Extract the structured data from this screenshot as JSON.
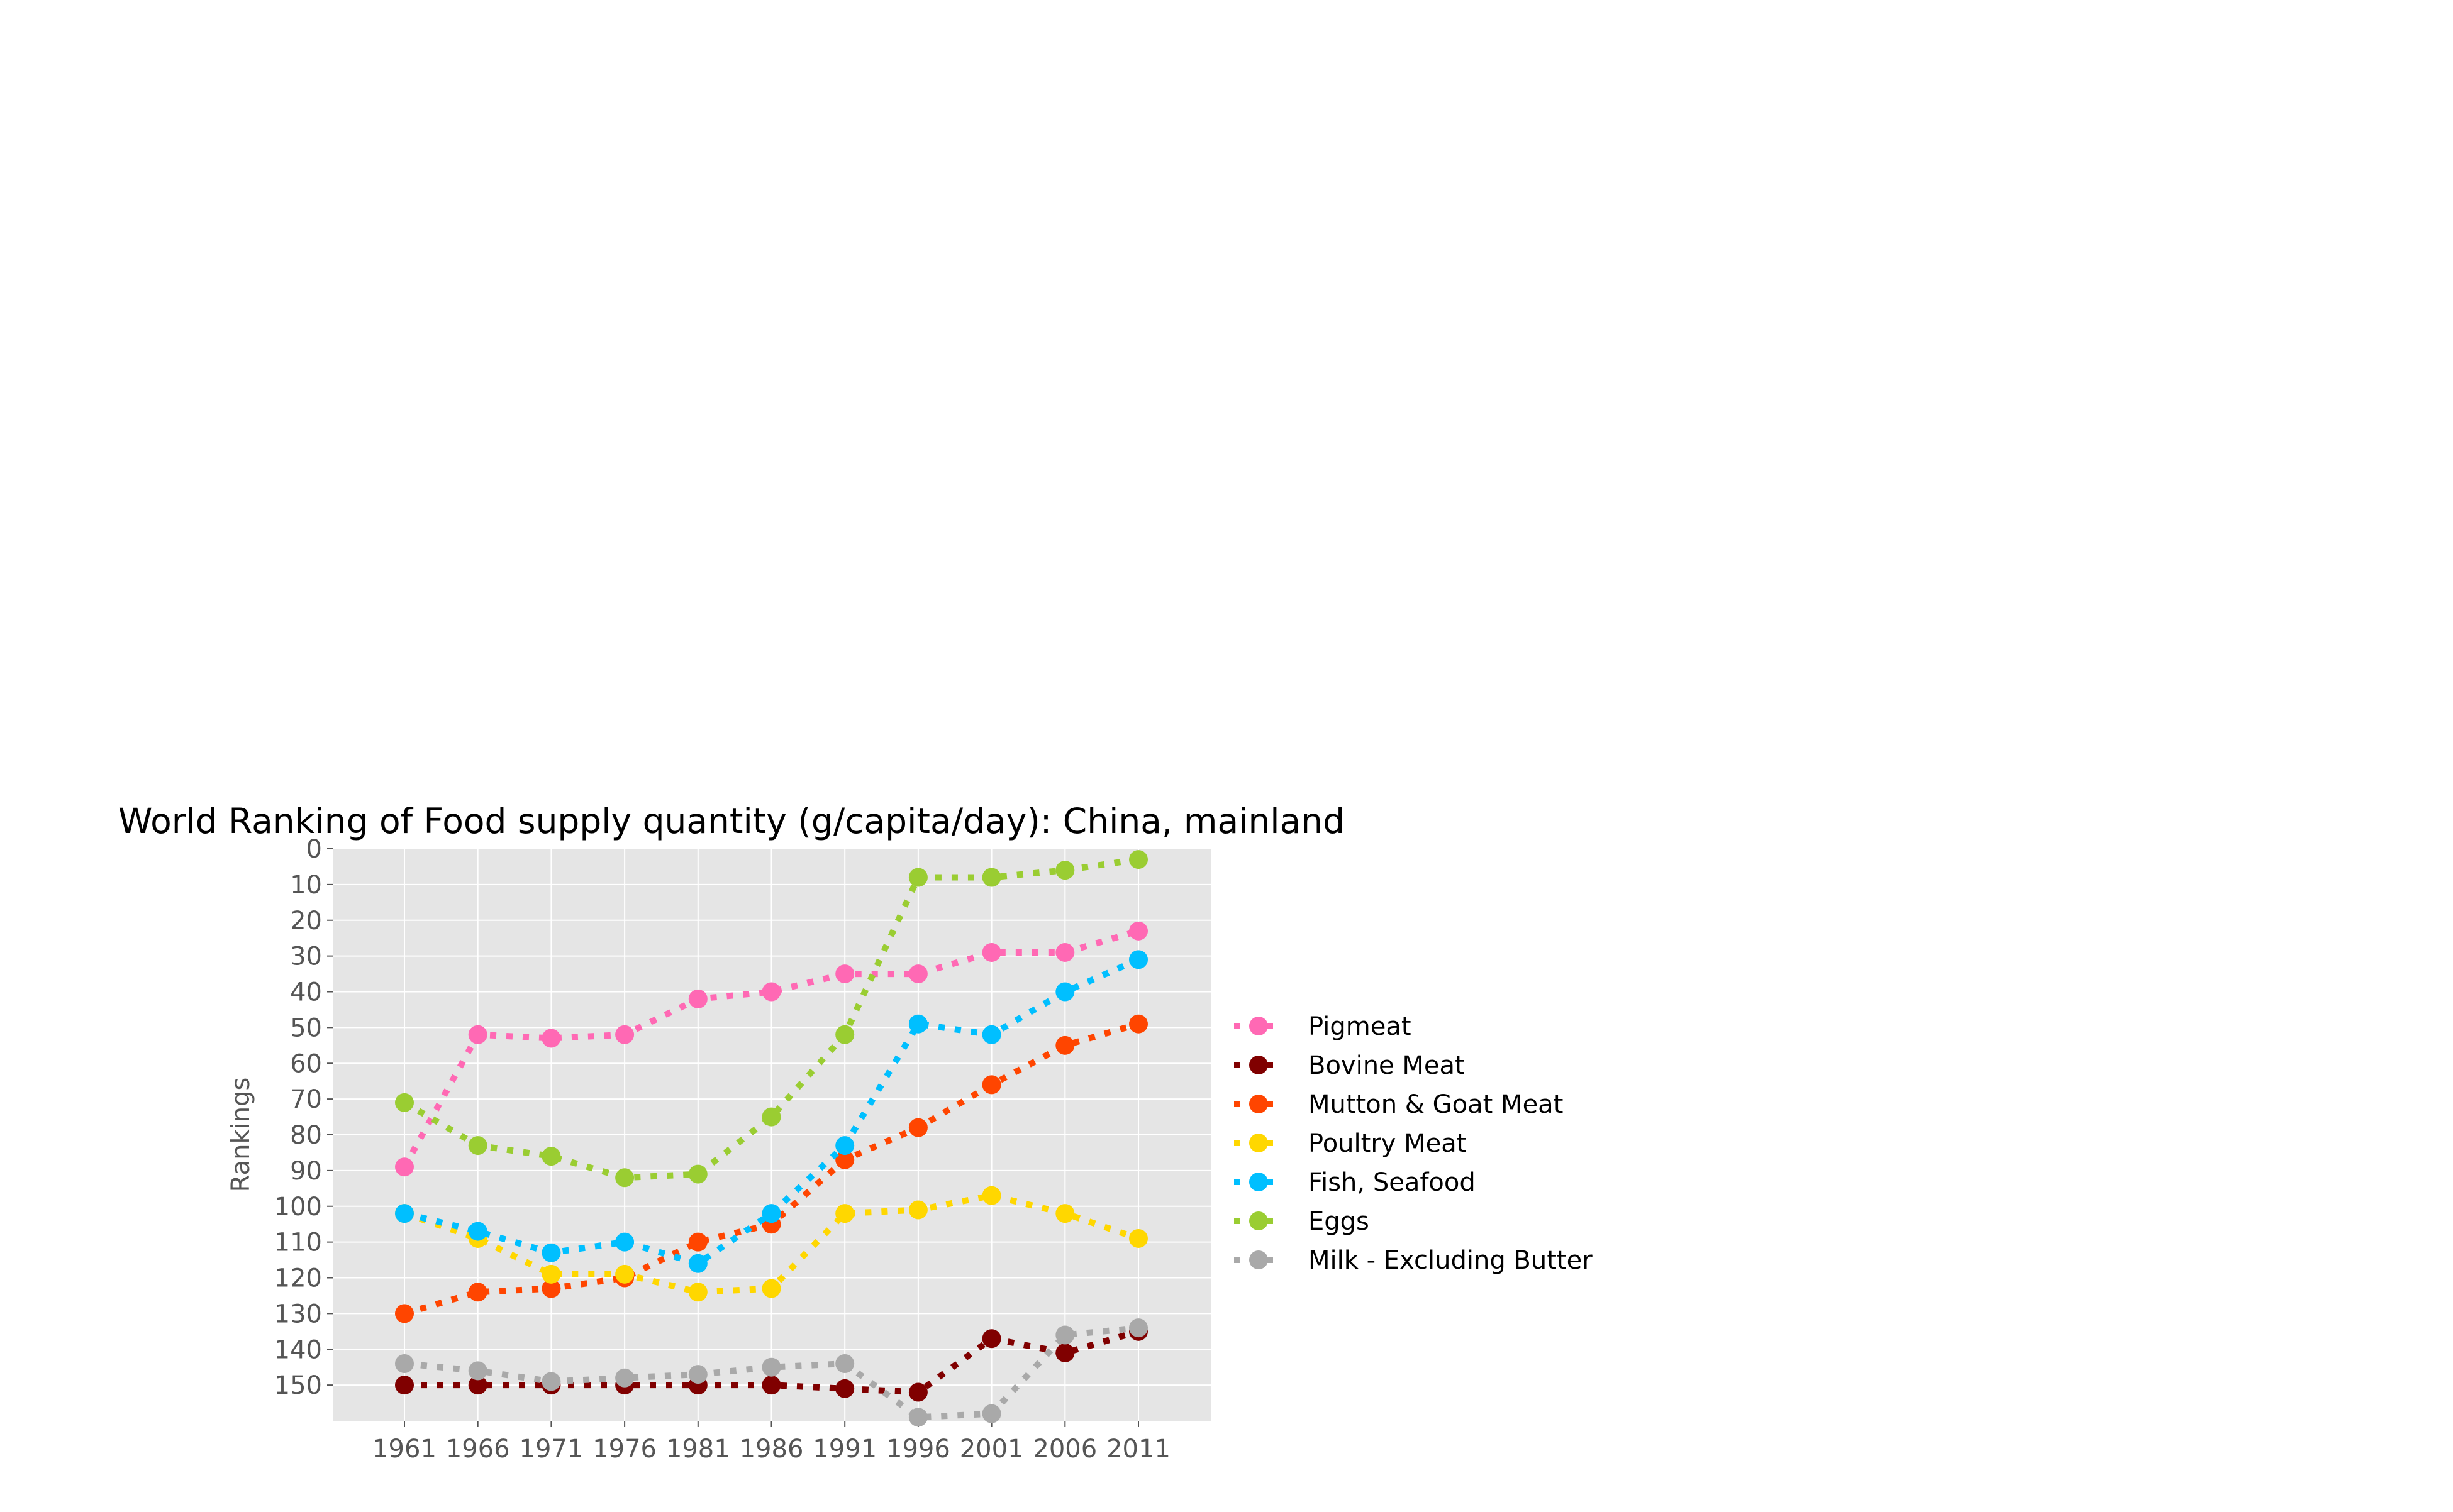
{
  "chart_data": {
    "type": "line",
    "title": "World Ranking of Food supply quantity (g/capita/day): China, mainland",
    "xlabel": "",
    "ylabel": "Rankings",
    "x": [
      1961,
      1966,
      1971,
      1976,
      1981,
      1986,
      1991,
      1996,
      2001,
      2006,
      2011
    ],
    "x_tick_labels": [
      "1961",
      "1966",
      "1971",
      "1976",
      "1981",
      "1986",
      "1991",
      "1996",
      "2001",
      "2006",
      "2011"
    ],
    "y_ticks": [
      0,
      10,
      20,
      30,
      40,
      50,
      60,
      70,
      80,
      90,
      100,
      110,
      120,
      130,
      140,
      150
    ],
    "y_tick_labels": [
      "0",
      "10",
      "20",
      "30",
      "40",
      "50",
      "60",
      "70",
      "80",
      "90",
      "100",
      "110",
      "120",
      "130",
      "140",
      "150"
    ],
    "ylim": [
      160,
      0
    ],
    "y_inverted": true,
    "grid": true,
    "line_style": "dotted",
    "legend_position": "right",
    "series": [
      {
        "name": "Pigmeat",
        "color": "#ff69b4",
        "values": [
          89,
          52,
          53,
          52,
          42,
          40,
          35,
          35,
          29,
          29,
          23
        ]
      },
      {
        "name": "Bovine Meat",
        "color": "#800000",
        "values": [
          150,
          150,
          150,
          150,
          150,
          150,
          151,
          152,
          137,
          141,
          135
        ]
      },
      {
        "name": "Mutton & Goat Meat",
        "color": "#ff4500",
        "values": [
          130,
          124,
          123,
          120,
          110,
          105,
          87,
          78,
          66,
          55,
          49
        ]
      },
      {
        "name": "Poultry Meat",
        "color": "#ffd700",
        "values": [
          102,
          109,
          119,
          119,
          124,
          123,
          102,
          101,
          97,
          102,
          109
        ]
      },
      {
        "name": "Fish, Seafood",
        "color": "#00bfff",
        "values": [
          102,
          107,
          113,
          110,
          116,
          102,
          83,
          49,
          52,
          40,
          31
        ]
      },
      {
        "name": "Eggs",
        "color": "#9acd32",
        "values": [
          71,
          83,
          86,
          92,
          91,
          75,
          52,
          8,
          8,
          6,
          3
        ]
      },
      {
        "name": "Milk - Excluding Butter",
        "color": "#a9a9a9",
        "values": [
          144,
          146,
          149,
          148,
          147,
          145,
          144,
          159,
          158,
          136,
          134
        ]
      }
    ]
  }
}
